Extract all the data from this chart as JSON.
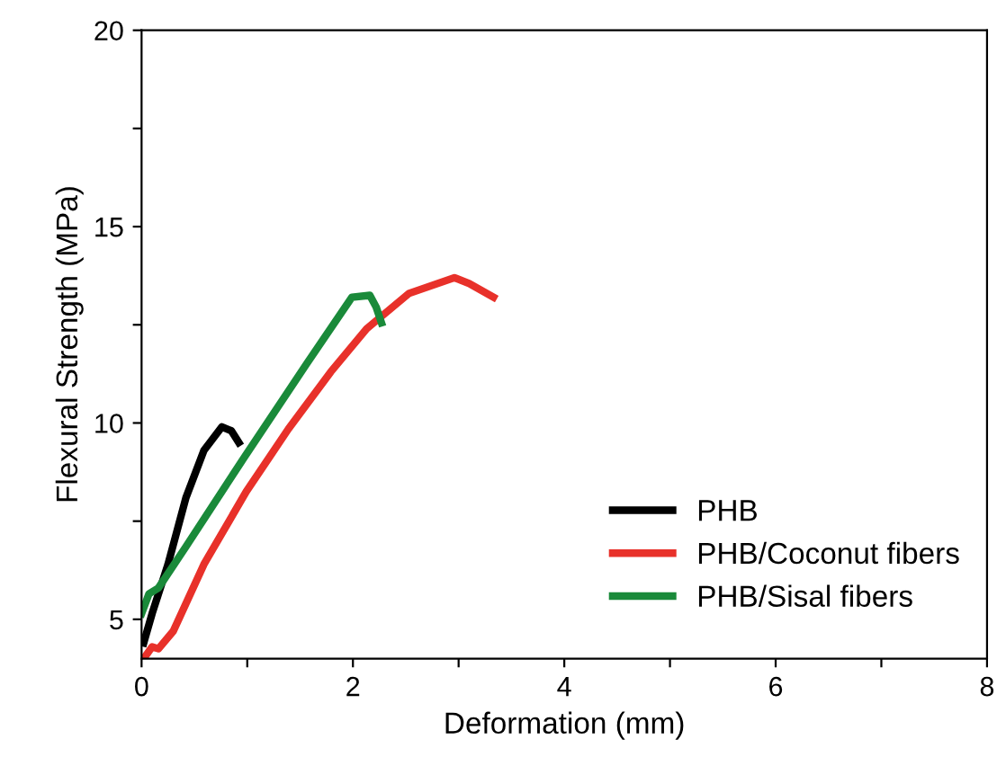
{
  "chart_data": {
    "type": "line",
    "xlabel": "Deformation (mm)",
    "ylabel": "Flexural Strength (MPa)",
    "xlim": [
      0,
      8
    ],
    "ylim": [
      4,
      20
    ],
    "xticks": [
      0,
      {
        "value": 1,
        "label": null
      },
      2,
      {
        "value": 3,
        "label": null
      },
      4,
      {
        "value": 5,
        "label": null
      },
      6,
      {
        "value": 7,
        "label": null
      },
      8
    ],
    "yticks": [
      5,
      {
        "value": 7.5,
        "label": null
      },
      10,
      {
        "value": 12.5,
        "label": null
      },
      15,
      {
        "value": 17.5,
        "label": null
      },
      20
    ],
    "grid": false,
    "legend": "bottom right",
    "marker": "none",
    "line_style": "solid",
    "series": [
      {
        "name": "PHB",
        "color": "#000000",
        "x": [
          0.02,
          0.1,
          0.25,
          0.42,
          0.59,
          0.76,
          0.85,
          0.92
        ],
        "values": [
          4.4,
          5.15,
          6.4,
          8.1,
          9.3,
          9.9,
          9.8,
          9.5
        ]
      },
      {
        "name": "PHB/Coconut fibers",
        "color": "#e8312a",
        "x": [
          0.02,
          0.1,
          0.16,
          0.3,
          0.59,
          0.99,
          1.39,
          1.79,
          2.13,
          2.53,
          2.96,
          3.1,
          3.33
        ],
        "values": [
          4.0,
          4.3,
          4.25,
          4.7,
          6.4,
          8.25,
          9.85,
          11.3,
          12.4,
          13.3,
          13.7,
          13.55,
          13.2
        ]
      },
      {
        "name": "PHB/Sisal fibers",
        "color": "#1a8a3a",
        "x": [
          0.0,
          0.07,
          0.16,
          0.42,
          0.99,
          1.56,
          1.99,
          2.16,
          2.22,
          2.27
        ],
        "values": [
          5.15,
          5.65,
          5.8,
          6.85,
          9.2,
          11.5,
          13.2,
          13.25,
          12.95,
          12.55
        ]
      }
    ]
  }
}
